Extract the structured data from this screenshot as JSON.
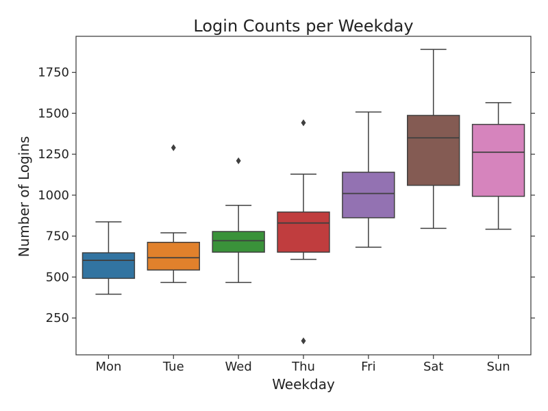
{
  "chart_data": {
    "type": "box",
    "title": "Login Counts per Weekday",
    "xlabel": "Weekday",
    "ylabel": "Number of Logins",
    "ylim": [
      25,
      1970
    ],
    "yticks": [
      250,
      500,
      750,
      1000,
      1250,
      1500,
      1750
    ],
    "grid": false,
    "categories": [
      "Mon",
      "Tue",
      "Wed",
      "Thu",
      "Fri",
      "Sat",
      "Sun"
    ],
    "colors": [
      "#3274a1",
      "#e1812c",
      "#3a923a",
      "#c03d3e",
      "#9372b2",
      "#845b53",
      "#d684bd"
    ],
    "boxes": [
      {
        "whisker_low": 395,
        "q1": 492,
        "median": 602,
        "q3": 648,
        "whisker_high": 837,
        "outliers": []
      },
      {
        "whisker_low": 467,
        "q1": 543,
        "median": 618,
        "q3": 712,
        "whisker_high": 770,
        "outliers": [
          1290
        ]
      },
      {
        "whisker_low": 467,
        "q1": 652,
        "median": 722,
        "q3": 778,
        "whisker_high": 938,
        "outliers": [
          1210
        ]
      },
      {
        "whisker_low": 608,
        "q1": 652,
        "median": 830,
        "q3": 897,
        "whisker_high": 1128,
        "outliers": [
          1442,
          110
        ]
      },
      {
        "whisker_low": 682,
        "q1": 862,
        "median": 1010,
        "q3": 1140,
        "whisker_high": 1508,
        "outliers": []
      },
      {
        "whisker_low": 797,
        "q1": 1060,
        "median": 1350,
        "q3": 1487,
        "whisker_high": 1890,
        "outliers": []
      },
      {
        "whisker_low": 792,
        "q1": 993,
        "median": 1262,
        "q3": 1432,
        "whisker_high": 1565,
        "outliers": []
      }
    ]
  }
}
